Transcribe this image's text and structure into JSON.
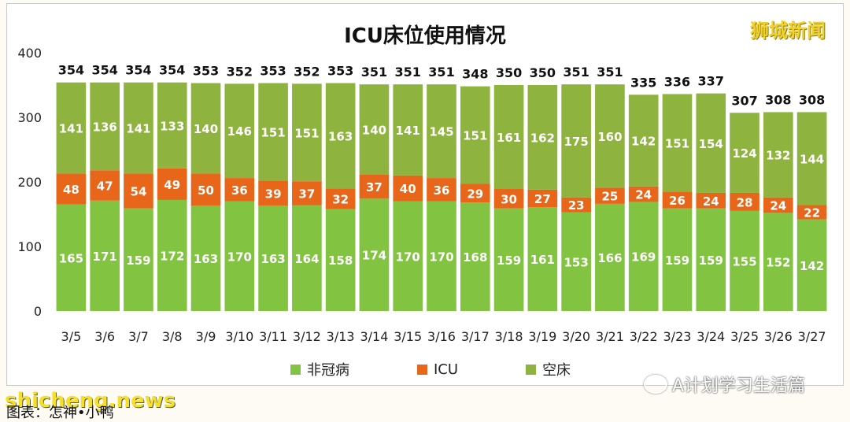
{
  "brand": "狮城新闻",
  "watermark": "A计划学习生活篇",
  "site_mark": "shicheng.news",
  "source_note": "图表：怎神•小鸭",
  "chart_data": {
    "type": "bar",
    "stacked": true,
    "title": "ICU床位使用情况",
    "xlabel": "",
    "ylabel": "",
    "ylim": [
      0,
      400
    ],
    "yticks": [
      0,
      100,
      200,
      300,
      400
    ],
    "grid": false,
    "legend_position": "bottom",
    "categories": [
      "3/5",
      "3/6",
      "3/7",
      "3/8",
      "3/9",
      "3/10",
      "3/11",
      "3/12",
      "3/13",
      "3/14",
      "3/15",
      "3/16",
      "3/17",
      "3/18",
      "3/19",
      "3/20",
      "3/21",
      "3/22",
      "3/23",
      "3/24",
      "3/25",
      "3/26",
      "3/27"
    ],
    "totals": [
      "354",
      "354",
      "354",
      "354",
      "353",
      "352",
      "353",
      "352",
      "353",
      "351",
      "351",
      "351",
      "348",
      "350",
      "350",
      "351",
      "351",
      "335",
      "336",
      "337",
      "307",
      "308",
      "308"
    ],
    "series": [
      {
        "name": "非冠病",
        "color": "#82c341",
        "label_color": "#ffffff",
        "values": [
          165,
          171,
          159,
          172,
          163,
          170,
          163,
          164,
          158,
          174,
          170,
          170,
          168,
          159,
          161,
          153,
          166,
          169,
          159,
          159,
          155,
          152,
          142
        ]
      },
      {
        "name": "ICU",
        "color": "#e8661a",
        "label_color": "#ffffff",
        "values": [
          48,
          47,
          54,
          49,
          50,
          36,
          39,
          37,
          32,
          37,
          40,
          36,
          29,
          30,
          27,
          23,
          25,
          24,
          26,
          24,
          28,
          24,
          22
        ]
      },
      {
        "name": "空床",
        "color": "#8fb33f",
        "label_color": "#ffffff",
        "values": [
          141,
          136,
          141,
          133,
          140,
          146,
          151,
          151,
          163,
          140,
          141,
          145,
          151,
          161,
          162,
          175,
          160,
          142,
          151,
          154,
          124,
          132,
          144
        ]
      }
    ]
  }
}
